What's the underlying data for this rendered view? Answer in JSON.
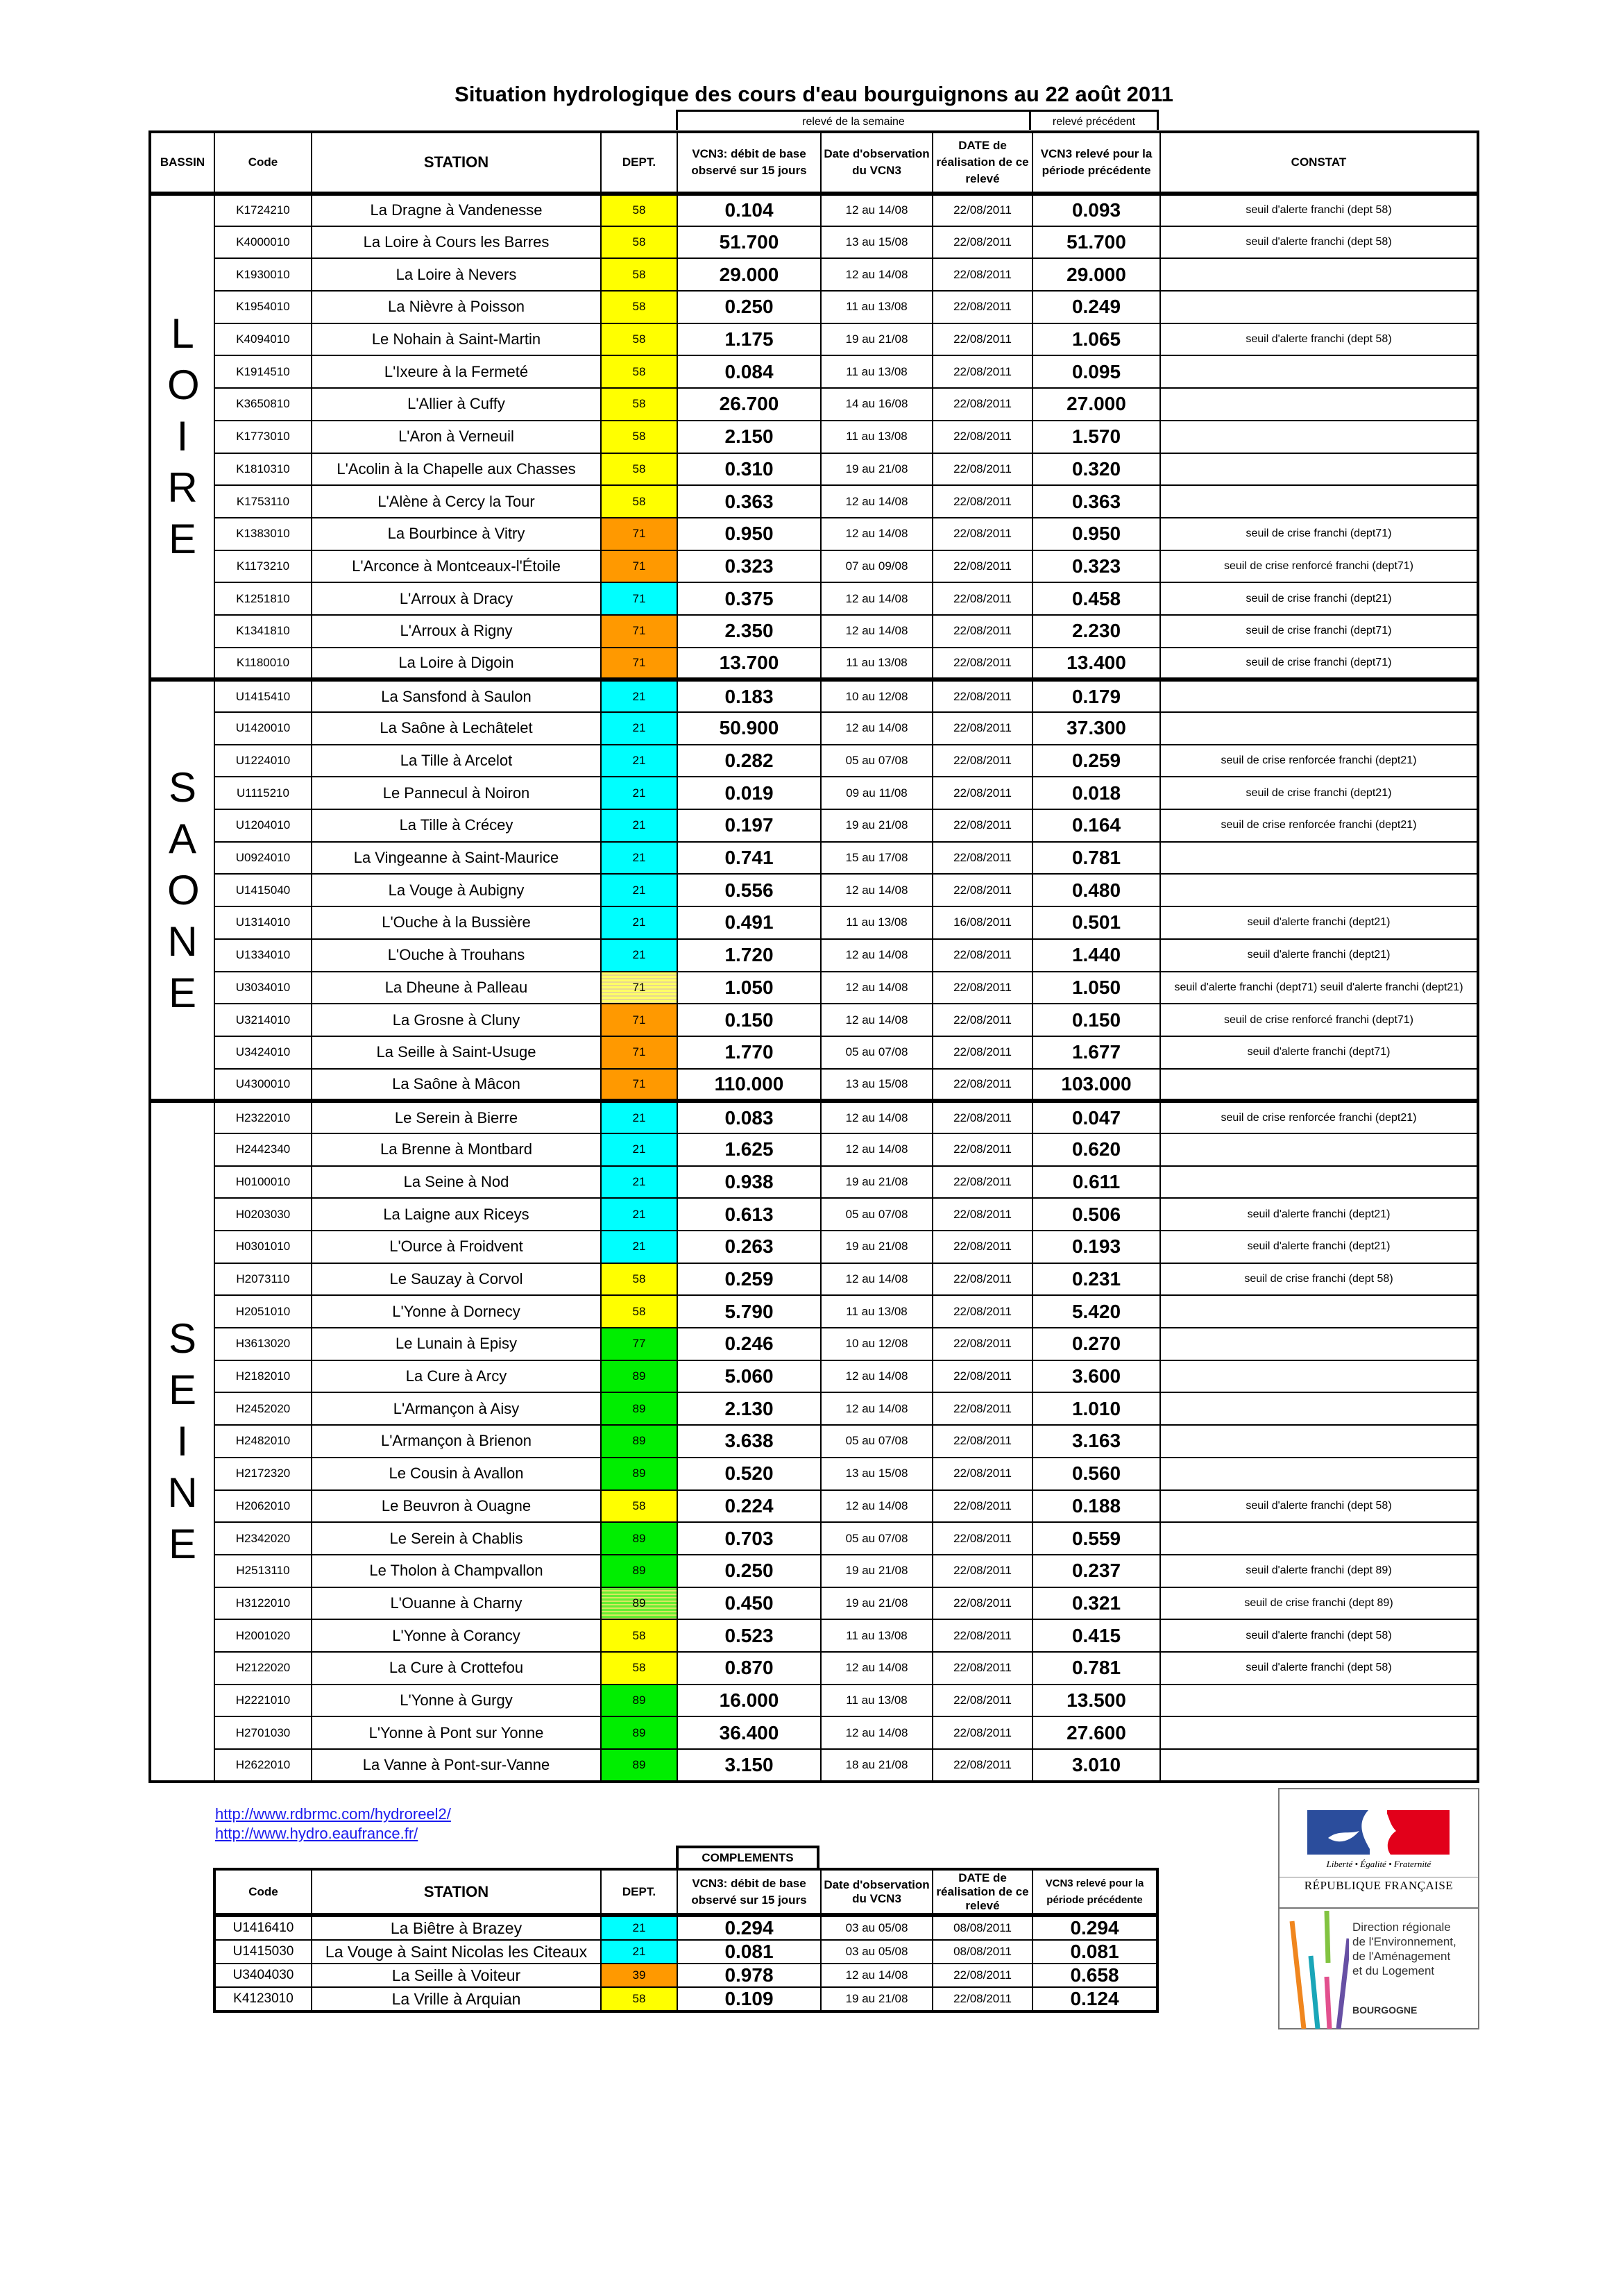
{
  "title": "Situation hydrologique des cours d'eau bourguignons au 22 août 2011",
  "groups": {
    "week": "relevé de la semaine",
    "previous": "relevé précédent"
  },
  "headers": {
    "bassin": "BASSIN",
    "code": "Code",
    "station": "STATION",
    "dept": "DEPT.",
    "vcn3": "VCN3: débit de base observé sur 15 jours",
    "date_obs": "Date d'observation du VCN3",
    "date_real": "DATE de réalisation de ce relevé",
    "vcn3_prev": "VCN3 relevé pour la période précédente",
    "constat": "CONSTAT"
  },
  "dept_colors": {
    "58": "#ffff00",
    "71": "#ff9900",
    "21": "#00ffff",
    "89": "#00ee00",
    "77": "#00ee00",
    "39": "#ff9900"
  },
  "sections": [
    {
      "bassin": "LOIRE",
      "rows": [
        {
          "code": "K1724210",
          "station": "La Dragne à Vandenesse",
          "dept": "58",
          "vcn3": "0.104",
          "date_obs": "12 au 14/08",
          "date_real": "22/08/2011",
          "vcn3_prev": "0.093",
          "constat": "seuil d'alerte franchi (dept 58)"
        },
        {
          "code": "K4000010",
          "station": "La Loire à Cours les Barres",
          "dept": "58",
          "vcn3": "51.700",
          "date_obs": "13 au 15/08",
          "date_real": "22/08/2011",
          "vcn3_prev": "51.700",
          "constat": "seuil d'alerte franchi (dept 58)"
        },
        {
          "code": "K1930010",
          "station": "La Loire à Nevers",
          "dept": "58",
          "vcn3": "29.000",
          "date_obs": "12 au 14/08",
          "date_real": "22/08/2011",
          "vcn3_prev": "29.000",
          "constat": ""
        },
        {
          "code": "K1954010",
          "station": "La Nièvre à Poisson",
          "dept": "58",
          "vcn3": "0.250",
          "date_obs": "11 au 13/08",
          "date_real": "22/08/2011",
          "vcn3_prev": "0.249",
          "constat": ""
        },
        {
          "code": "K4094010",
          "station": "Le Nohain à Saint-Martin",
          "dept": "58",
          "vcn3": "1.175",
          "date_obs": "19 au 21/08",
          "date_real": "22/08/2011",
          "vcn3_prev": "1.065",
          "constat": "seuil d'alerte franchi (dept 58)"
        },
        {
          "code": "K1914510",
          "station": "L'Ixeure à la Fermeté",
          "dept": "58",
          "vcn3": "0.084",
          "date_obs": "11 au 13/08",
          "date_real": "22/08/2011",
          "vcn3_prev": "0.095",
          "constat": ""
        },
        {
          "code": "K3650810",
          "station": "L'Allier à Cuffy",
          "dept": "58",
          "vcn3": "26.700",
          "date_obs": "14 au 16/08",
          "date_real": "22/08/2011",
          "vcn3_prev": "27.000",
          "constat": ""
        },
        {
          "code": "K1773010",
          "station": "L'Aron à Verneuil",
          "dept": "58",
          "vcn3": "2.150",
          "date_obs": "11 au 13/08",
          "date_real": "22/08/2011",
          "vcn3_prev": "1.570",
          "constat": ""
        },
        {
          "code": "K1810310",
          "station": "L'Acolin à la Chapelle aux Chasses",
          "dept": "58",
          "vcn3": "0.310",
          "date_obs": "19 au 21/08",
          "date_real": "22/08/2011",
          "vcn3_prev": "0.320",
          "constat": ""
        },
        {
          "code": "K1753110",
          "station": "L'Alène à Cercy la Tour",
          "dept": "58",
          "vcn3": "0.363",
          "date_obs": "12 au 14/08",
          "date_real": "22/08/2011",
          "vcn3_prev": "0.363",
          "constat": ""
        },
        {
          "code": "K1383010",
          "station": "La Bourbince à Vitry",
          "dept": "71",
          "vcn3": "0.950",
          "date_obs": "12 au 14/08",
          "date_real": "22/08/2011",
          "vcn3_prev": "0.950",
          "constat": "seuil de crise franchi (dept71)"
        },
        {
          "code": "K1173210",
          "station": "L'Arconce à Montceaux-l'Étoile",
          "dept": "71",
          "vcn3": "0.323",
          "date_obs": "07 au 09/08",
          "date_real": "22/08/2011",
          "vcn3_prev": "0.323",
          "constat": "seuil de crise renforcé franchi (dept71)"
        },
        {
          "code": "K1251810",
          "station": "L'Arroux à Dracy",
          "dept": "71",
          "color": "#00ffff",
          "vcn3": "0.375",
          "date_obs": "12 au 14/08",
          "date_real": "22/08/2011",
          "vcn3_prev": "0.458",
          "constat": "seuil de crise franchi (dept21)"
        },
        {
          "code": "K1341810",
          "station": "L'Arroux à Rigny",
          "dept": "71",
          "vcn3": "2.350",
          "date_obs": "12 au 14/08",
          "date_real": "22/08/2011",
          "vcn3_prev": "2.230",
          "constat": "seuil de crise franchi (dept71)"
        },
        {
          "code": "K1180010",
          "station": "La Loire à Digoin",
          "dept": "71",
          "vcn3": "13.700",
          "date_obs": "11 au 13/08",
          "date_real": "22/08/2011",
          "vcn3_prev": "13.400",
          "constat": "seuil de crise franchi (dept71)"
        }
      ]
    },
    {
      "bassin": "SAONE",
      "rows": [
        {
          "code": "U1415410",
          "station": "La Sansfond à Saulon",
          "dept": "21",
          "vcn3": "0.183",
          "date_obs": "10 au 12/08",
          "date_real": "22/08/2011",
          "vcn3_prev": "0.179",
          "constat": ""
        },
        {
          "code": "U1420010",
          "station": "La Saône à Lechâtelet",
          "dept": "21",
          "vcn3": "50.900",
          "date_obs": "12 au 14/08",
          "date_real": "22/08/2011",
          "vcn3_prev": "37.300",
          "constat": ""
        },
        {
          "code": "U1224010",
          "station": "La Tille à Arcelot",
          "dept": "21",
          "vcn3": "0.282",
          "date_obs": "05 au 07/08",
          "date_real": "22/08/2011",
          "vcn3_prev": "0.259",
          "constat": "seuil de crise renforcée franchi (dept21)"
        },
        {
          "code": "U1115210",
          "station": "Le Pannecul à Noiron",
          "dept": "21",
          "vcn3": "0.019",
          "date_obs": "09 au 11/08",
          "date_real": "22/08/2011",
          "vcn3_prev": "0.018",
          "constat": "seuil de crise franchi (dept21)"
        },
        {
          "code": "U1204010",
          "station": "La Tille à Crécey",
          "dept": "21",
          "vcn3": "0.197",
          "date_obs": "19 au 21/08",
          "date_real": "22/08/2011",
          "vcn3_prev": "0.164",
          "constat": "seuil de crise renforcée franchi (dept21)"
        },
        {
          "code": "U0924010",
          "station": "La Vingeanne à Saint-Maurice",
          "dept": "21",
          "vcn3": "0.741",
          "date_obs": "15 au 17/08",
          "date_real": "22/08/2011",
          "vcn3_prev": "0.781",
          "constat": ""
        },
        {
          "code": "U1415040",
          "station": "La Vouge à Aubigny",
          "dept": "21",
          "vcn3": "0.556",
          "date_obs": "12 au 14/08",
          "date_real": "22/08/2011",
          "vcn3_prev": "0.480",
          "constat": ""
        },
        {
          "code": "U1314010",
          "station": "L'Ouche à la Bussière",
          "dept": "21",
          "vcn3": "0.491",
          "date_obs": "11 au 13/08",
          "date_real": "16/08/2011",
          "vcn3_prev": "0.501",
          "constat": "seuil d'alerte franchi (dept21)"
        },
        {
          "code": "U1334010",
          "station": "L'Ouche à Trouhans",
          "dept": "21",
          "vcn3": "1.720",
          "date_obs": "12 au 14/08",
          "date_real": "22/08/2011",
          "vcn3_prev": "1.440",
          "constat": "seuil d'alerte franchi (dept21)"
        },
        {
          "code": "U3034010",
          "station": "La Dheune à Palleau",
          "dept": "71",
          "striped": [
            "#ffff66",
            "#e8d890"
          ],
          "vcn3": "1.050",
          "date_obs": "12 au 14/08",
          "date_real": "22/08/2011",
          "vcn3_prev": "1.050",
          "constat": "seuil d'alerte franchi (dept71)  seuil d'alerte franchi (dept21)"
        },
        {
          "code": "U3214010",
          "station": "La Grosne à Cluny",
          "dept": "71",
          "vcn3": "0.150",
          "date_obs": "12 au 14/08",
          "date_real": "22/08/2011",
          "vcn3_prev": "0.150",
          "constat": "seuil de crise renforcé franchi (dept71)"
        },
        {
          "code": "U3424010",
          "station": "La Seille à Saint-Usuge",
          "dept": "71",
          "vcn3": "1.770",
          "date_obs": "05 au 07/08",
          "date_real": "22/08/2011",
          "vcn3_prev": "1.677",
          "constat": "seuil d'alerte franchi (dept71)"
        },
        {
          "code": "U4300010",
          "station": "La Saône à Mâcon",
          "dept": "71",
          "vcn3": "110.000",
          "date_obs": "13 au 15/08",
          "date_real": "22/08/2011",
          "vcn3_prev": "103.000",
          "constat": ""
        }
      ]
    },
    {
      "bassin": "SEINE",
      "rows": [
        {
          "code": "H2322010",
          "station": "Le Serein à Bierre",
          "dept": "21",
          "vcn3": "0.083",
          "date_obs": "12 au 14/08",
          "date_real": "22/08/2011",
          "vcn3_prev": "0.047",
          "constat": "seuil de crise renforcée franchi (dept21)"
        },
        {
          "code": "H2442340",
          "station": "La Brenne à Montbard",
          "dept": "21",
          "vcn3": "1.625",
          "date_obs": "12 au 14/08",
          "date_real": "22/08/2011",
          "vcn3_prev": "0.620",
          "constat": ""
        },
        {
          "code": "H0100010",
          "station": "La Seine à Nod",
          "dept": "21",
          "vcn3": "0.938",
          "date_obs": "19 au 21/08",
          "date_real": "22/08/2011",
          "vcn3_prev": "0.611",
          "constat": ""
        },
        {
          "code": "H0203030",
          "station": "La Laigne aux Riceys",
          "dept": "21",
          "vcn3": "0.613",
          "date_obs": "05 au 07/08",
          "date_real": "22/08/2011",
          "vcn3_prev": "0.506",
          "constat": "seuil d'alerte franchi (dept21)"
        },
        {
          "code": "H0301010",
          "station": "L'Ource à Froidvent",
          "dept": "21",
          "vcn3": "0.263",
          "date_obs": "19 au 21/08",
          "date_real": "22/08/2011",
          "vcn3_prev": "0.193",
          "constat": "seuil d'alerte franchi (dept21)"
        },
        {
          "code": "H2073110",
          "station": "Le Sauzay à Corvol",
          "dept": "58",
          "vcn3": "0.259",
          "date_obs": "12 au 14/08",
          "date_real": "22/08/2011",
          "vcn3_prev": "0.231",
          "constat": "seuil de crise franchi (dept 58)"
        },
        {
          "code": "H2051010",
          "station": "L'Yonne à Dornecy",
          "dept": "58",
          "vcn3": "5.790",
          "date_obs": "11 au 13/08",
          "date_real": "22/08/2011",
          "vcn3_prev": "5.420",
          "constat": ""
        },
        {
          "code": "H3613020",
          "station": "Le Lunain à Episy",
          "dept": "77",
          "vcn3": "0.246",
          "date_obs": "10 au 12/08",
          "date_real": "22/08/2011",
          "vcn3_prev": "0.270",
          "constat": ""
        },
        {
          "code": "H2182010",
          "station": "La Cure à Arcy",
          "dept": "89",
          "vcn3": "5.060",
          "date_obs": "12 au 14/08",
          "date_real": "22/08/2011",
          "vcn3_prev": "3.600",
          "constat": ""
        },
        {
          "code": "H2452020",
          "station": "L'Armançon à Aisy",
          "dept": "89",
          "vcn3": "2.130",
          "date_obs": "12 au 14/08",
          "date_real": "22/08/2011",
          "vcn3_prev": "1.010",
          "constat": ""
        },
        {
          "code": "H2482010",
          "station": "L'Armançon à Brienon",
          "dept": "89",
          "vcn3": "3.638",
          "date_obs": "05 au 07/08",
          "date_real": "22/08/2011",
          "vcn3_prev": "3.163",
          "constat": ""
        },
        {
          "code": "H2172320",
          "station": "Le Cousin à Avallon",
          "dept": "89",
          "vcn3": "0.520",
          "date_obs": "13 au 15/08",
          "date_real": "22/08/2011",
          "vcn3_prev": "0.560",
          "constat": ""
        },
        {
          "code": "H2062010",
          "station": "Le Beuvron à Ouagne",
          "dept": "58",
          "vcn3": "0.224",
          "date_obs": "12 au 14/08",
          "date_real": "22/08/2011",
          "vcn3_prev": "0.188",
          "constat": "seuil d'alerte franchi (dept 58)"
        },
        {
          "code": "H2342020",
          "station": "Le Serein à Chablis",
          "dept": "89",
          "vcn3": "0.703",
          "date_obs": "05 au 07/08",
          "date_real": "22/08/2011",
          "vcn3_prev": "0.559",
          "constat": ""
        },
        {
          "code": "H2513110",
          "station": "Le Tholon à Champvallon",
          "dept": "89",
          "vcn3": "0.250",
          "date_obs": "19 au 21/08",
          "date_real": "22/08/2011",
          "vcn3_prev": "0.237",
          "constat": "seuil d'alerte franchi (dept 89)"
        },
        {
          "code": "H3122010",
          "station": "L'Ouanne à Charny",
          "dept": "89",
          "striped": [
            "#66ee33",
            "#d8e860"
          ],
          "vcn3": "0.450",
          "date_obs": "19 au 21/08",
          "date_real": "22/08/2011",
          "vcn3_prev": "0.321",
          "constat": "seuil de crise franchi (dept 89)"
        },
        {
          "code": "H2001020",
          "station": "L'Yonne à Corancy",
          "dept": "58",
          "vcn3": "0.523",
          "date_obs": "11 au 13/08",
          "date_real": "22/08/2011",
          "vcn3_prev": "0.415",
          "constat": "seuil d'alerte franchi (dept 58)"
        },
        {
          "code": "H2122020",
          "station": "La Cure à Crottefou",
          "dept": "58",
          "vcn3": "0.870",
          "date_obs": "12 au 14/08",
          "date_real": "22/08/2011",
          "vcn3_prev": "0.781",
          "constat": "seuil d'alerte franchi (dept 58)"
        },
        {
          "code": "H2221010",
          "station": "L'Yonne à Gurgy",
          "dept": "89",
          "vcn3": "16.000",
          "date_obs": "11 au 13/08",
          "date_real": "22/08/2011",
          "vcn3_prev": "13.500",
          "constat": ""
        },
        {
          "code": "H2701030",
          "station": "L'Yonne à Pont sur Yonne",
          "dept": "89",
          "vcn3": "36.400",
          "date_obs": "12 au 14/08",
          "date_real": "22/08/2011",
          "vcn3_prev": "27.600",
          "constat": ""
        },
        {
          "code": "H2622010",
          "station": "La Vanne à Pont-sur-Vanne",
          "dept": "89",
          "vcn3": "3.150",
          "date_obs": "18 au 21/08",
          "date_real": "22/08/2011",
          "vcn3_prev": "3.010",
          "constat": ""
        }
      ]
    }
  ],
  "links": [
    "http://www.rdbrmc.com/hydroreel2/",
    "http://www.hydro.eaufrance.fr/"
  ],
  "complements": {
    "label": "COMPLEMENTS",
    "rows": [
      {
        "code": "U1416410",
        "station": "La Biêtre à Brazey",
        "dept": "21",
        "vcn3": "0.294",
        "date_obs": "03 au 05/08",
        "date_real": "08/08/2011",
        "vcn3_prev": "0.294"
      },
      {
        "code": "U1415030",
        "station": "La Vouge à Saint Nicolas les Citeaux",
        "dept": "21",
        "vcn3": "0.081",
        "date_obs": "03 au 05/08",
        "date_real": "08/08/2011",
        "vcn3_prev": "0.081"
      },
      {
        "code": "U3404030",
        "station": "La Seille à Voiteur",
        "dept": "39",
        "vcn3": "0.978",
        "date_obs": "12 au 14/08",
        "date_real": "22/08/2011",
        "vcn3_prev": "0.658"
      },
      {
        "code": "K4123010",
        "station": "La Vrille à Arquian",
        "dept": "58",
        "vcn3": "0.109",
        "date_obs": "19 au 21/08",
        "date_real": "22/08/2011",
        "vcn3_prev": "0.124"
      }
    ]
  },
  "logo": {
    "motto": "Liberté • Égalité • Fraternité",
    "republique": "RÉPUBLIQUE FRANÇAISE",
    "dreal": [
      "Direction régionale",
      "de l'Environnement,",
      "de l'Aménagement",
      "et du Logement"
    ],
    "region": "BOURGOGNE"
  }
}
